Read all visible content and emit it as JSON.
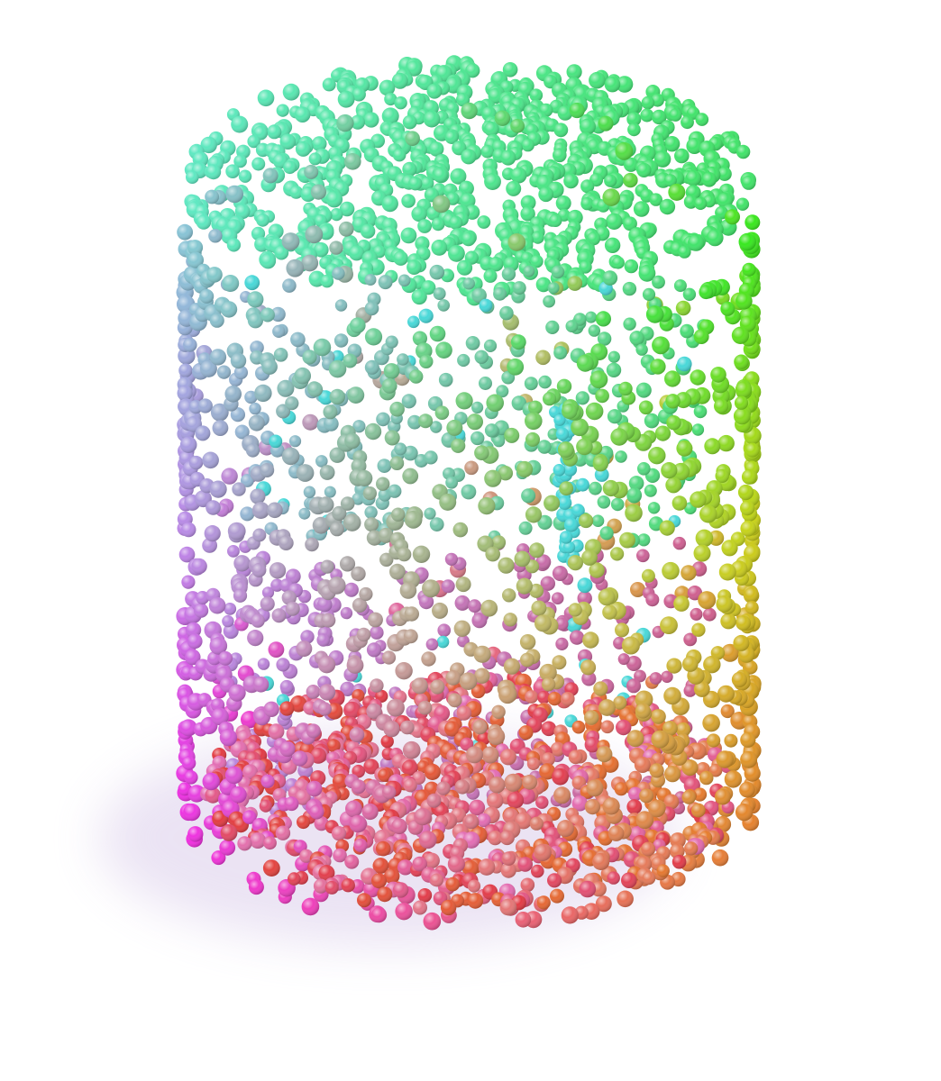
{
  "scene": {
    "subject": "point-cloud-cylinder",
    "background_color": "#ffffff",
    "palette": {
      "top_cyan": "#5fe8c3",
      "top_green": "#42e36a",
      "side_green": "#35e81e",
      "side_yellow": "#c8d419",
      "left_blue": "#9fb1e0",
      "left_violet": "#b88be6",
      "left_magenta": "#f02ee2",
      "bottom_red": "#e23b44",
      "bottom_orange": "#e6812d",
      "bottom_pink": "#e36fb6",
      "inner_cyan": "#49d8d8"
    },
    "shadow_color": "#d3c2e6"
  }
}
